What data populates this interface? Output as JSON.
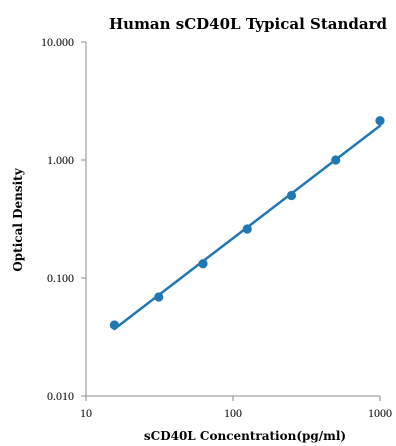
{
  "chart_data": {
    "type": "scatter",
    "title": "Human sCD40L Typical Standard",
    "xlabel": "sCD40L Concentration(pg/ml)",
    "ylabel": "Optical Density",
    "x_scale": "log",
    "y_scale": "log",
    "xlim": [
      10,
      1000
    ],
    "ylim": [
      0.01,
      10
    ],
    "x_ticks": [
      10,
      100,
      1000
    ],
    "x_tick_labels": [
      "10",
      "100",
      "1000"
    ],
    "y_ticks": [
      0.01,
      0.1,
      1,
      10
    ],
    "y_tick_labels": [
      "0.010",
      "0.100",
      "1.000",
      "10.000"
    ],
    "grid": false,
    "series": [
      {
        "x": [
          15.6,
          31.25,
          62.5,
          125,
          250,
          500,
          1000
        ],
        "y": [
          0.04,
          0.069,
          0.132,
          0.26,
          0.5,
          1.0,
          2.15
        ],
        "color": "#1f77b4",
        "marker": "circle"
      }
    ],
    "trendline": {
      "type": "power",
      "x": [
        15.6,
        1000
      ],
      "y": [
        0.037,
        1.95
      ],
      "color": "#1f77b4"
    }
  }
}
